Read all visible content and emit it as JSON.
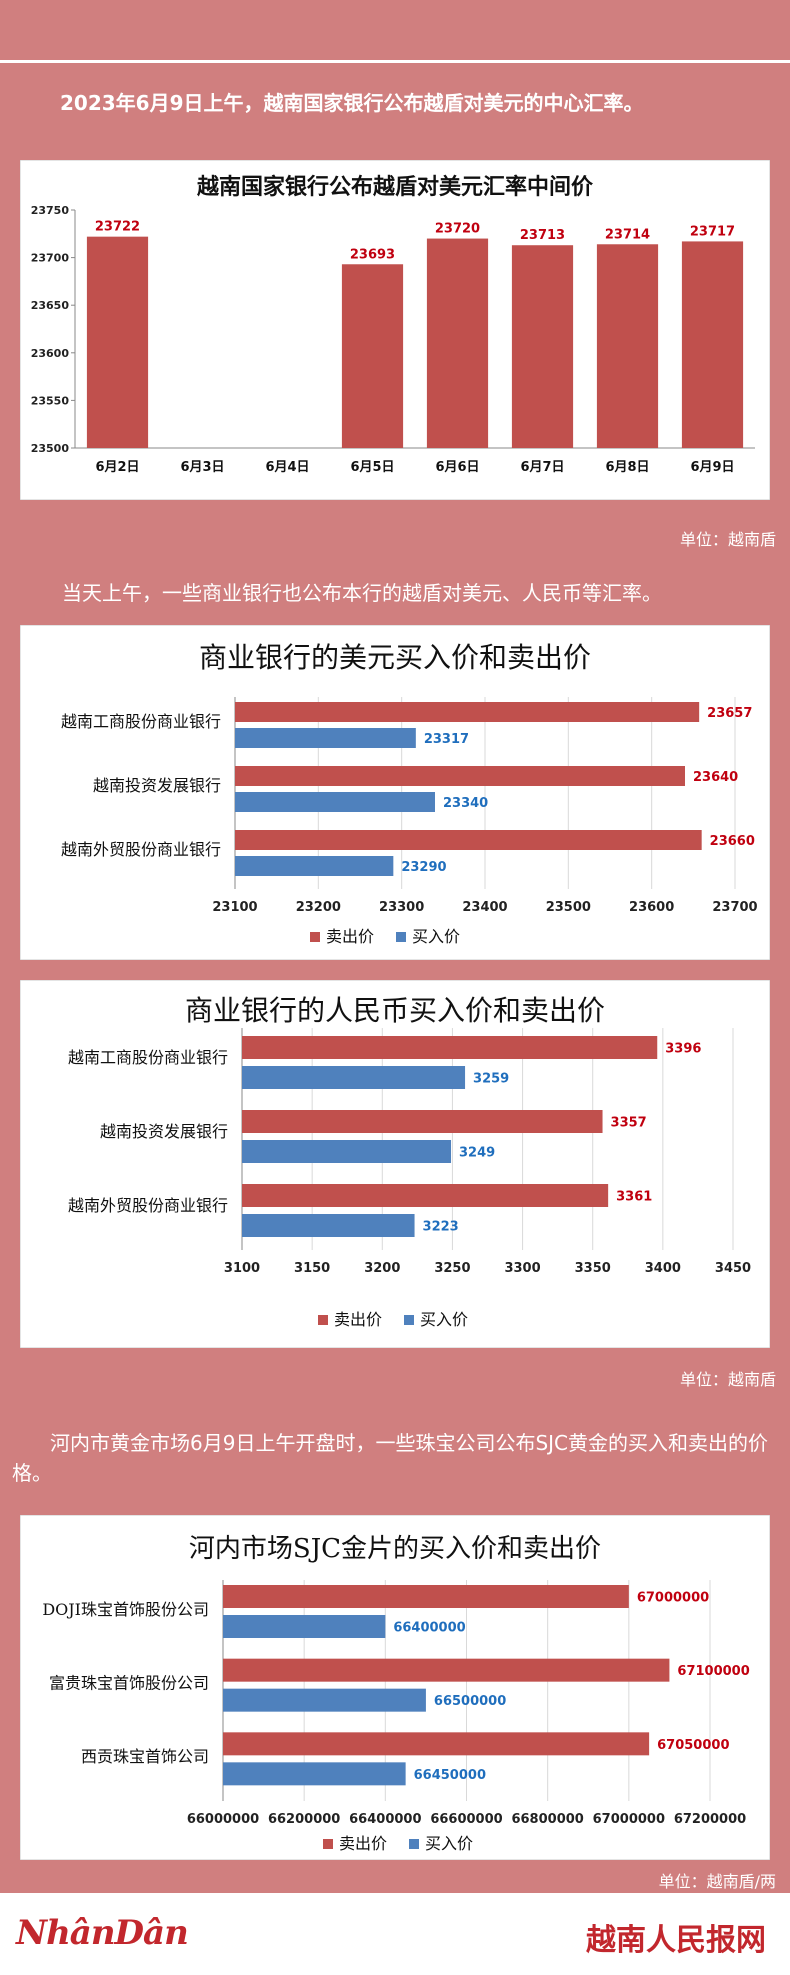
{
  "intro1": "2023年6月9日上午，越南国家银行公布越盾对美元的中心汇率。",
  "unit1": "单位：越南盾",
  "intro2": "当天上午，一些商业银行也公布本行的越盾对美元、人民币等汇率。",
  "unit2": "单位：越南盾",
  "intro3": "河内市黄金市场6月9日上午开盘时，一些珠宝公司公布SJC黄金的买入和卖出的价格。",
  "unit3": "单位：越南盾/两",
  "footer": {
    "left_logo": "NhânDân",
    "right_logo": "越南人民报网"
  },
  "colors": {
    "sell": "#c0504d",
    "buy": "#4f81bd",
    "sell_label": "#c0000f",
    "buy_label": "#1f6ebd",
    "background": "#d07f7f"
  },
  "chart_data": [
    {
      "type": "bar",
      "title": "越南国家银行公布越盾对美元汇率中间价",
      "categories": [
        "6月2日",
        "6月3日",
        "6月4日",
        "6月5日",
        "6月6日",
        "6月7日",
        "6月8日",
        "6月9日"
      ],
      "values": [
        23722,
        null,
        null,
        23693,
        23720,
        23713,
        23714,
        23717
      ],
      "data_labels": [
        "23722",
        "",
        "",
        "23693",
        "23720",
        "23713",
        "23714",
        "23717"
      ],
      "ylim": [
        23500,
        23750
      ],
      "yticks": [
        23500,
        23550,
        23600,
        23650,
        23700,
        23750
      ],
      "grid": false
    },
    {
      "type": "bar",
      "orientation": "horizontal",
      "title": "商业银行的美元买入价和卖出价",
      "categories": [
        "越南工商股份商业银行",
        "越南投资发展银行",
        "越南外贸股份商业银行"
      ],
      "series": [
        {
          "name": "卖出价",
          "values": [
            23657,
            23640,
            23660
          ]
        },
        {
          "name": "买入价",
          "values": [
            23317,
            23340,
            23290
          ]
        }
      ],
      "xlim": [
        23100,
        23700
      ],
      "xticks": [
        23100,
        23200,
        23300,
        23400,
        23500,
        23600,
        23700
      ],
      "legend": "bottom"
    },
    {
      "type": "bar",
      "orientation": "horizontal",
      "title": "商业银行的人民币买入价和卖出价",
      "categories": [
        "越南工商股份商业银行",
        "越南投资发展银行",
        "越南外贸股份商业银行"
      ],
      "series": [
        {
          "name": "卖出价",
          "values": [
            3396,
            3357,
            3361
          ]
        },
        {
          "name": "买入价",
          "values": [
            3259,
            3249,
            3223
          ]
        }
      ],
      "xlim": [
        3100,
        3450
      ],
      "xticks": [
        3100,
        3150,
        3200,
        3250,
        3300,
        3350,
        3400,
        3450
      ],
      "legend": "bottom"
    },
    {
      "type": "bar",
      "orientation": "horizontal",
      "title": "河内市场SJC金片的买入价和卖出价",
      "categories": [
        "DOJI珠宝首饰股份公司",
        "富贵珠宝首饰股份公司",
        "西贡珠宝首饰公司"
      ],
      "series": [
        {
          "name": "卖出价",
          "values": [
            67000000,
            67100000,
            67050000
          ]
        },
        {
          "name": "买入价",
          "values": [
            66400000,
            66500000,
            66450000
          ]
        }
      ],
      "xlim": [
        66000000,
        67200000
      ],
      "xticks": [
        66000000,
        66200000,
        66400000,
        66600000,
        66800000,
        67000000,
        67200000
      ],
      "legend": "bottom"
    }
  ]
}
